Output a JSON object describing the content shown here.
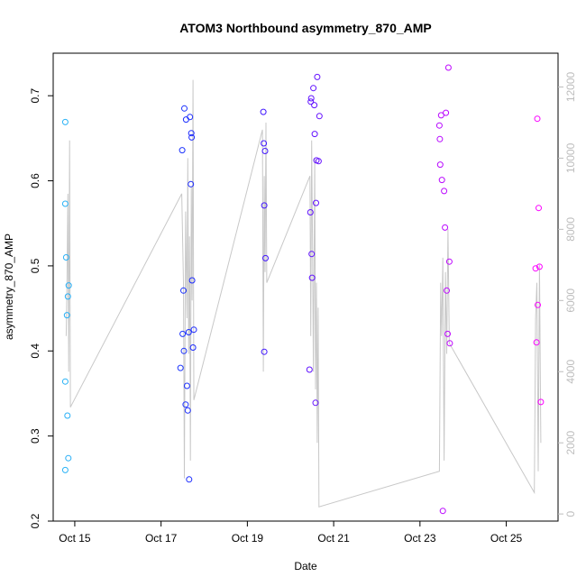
{
  "chart_data": {
    "type": "scatter",
    "title": "ATOM3 Northbound asymmetry_870_AMP",
    "xlabel": "Date",
    "ylabel": "asymmetry_870_AMP",
    "x_ticks": [
      "Oct 15",
      "Oct 17",
      "Oct 19",
      "Oct 21",
      "Oct 23",
      "Oct 25"
    ],
    "x_tick_values": [
      15,
      17,
      19,
      21,
      23,
      25
    ],
    "xlim": [
      14.5,
      26.2
    ],
    "ylim": [
      0.2,
      0.75
    ],
    "y_ticks": [
      0.2,
      0.3,
      0.4,
      0.5,
      0.6,
      0.7
    ],
    "y2_ticks": [
      0,
      2000,
      4000,
      6000,
      8000,
      10000,
      12000
    ],
    "y2lim": [
      -200,
      12950
    ],
    "grid": false,
    "legend": "none",
    "colors": {
      "start": "#29b6f6",
      "mid": "#1a1aff",
      "end": "#ff00ff",
      "line": "#c8c8c8"
    },
    "series": [
      {
        "values": [
          [
            14.78,
            0.669
          ],
          [
            14.78,
            0.573
          ],
          [
            14.8,
            0.51
          ],
          [
            14.82,
            0.442
          ],
          [
            14.78,
            0.364
          ],
          [
            14.83,
            0.324
          ],
          [
            14.85,
            0.274
          ],
          [
            14.78,
            0.26
          ],
          [
            14.86,
            0.477
          ],
          [
            14.84,
            0.464
          ],
          [
            17.45,
            0.38
          ],
          [
            17.49,
            0.636
          ],
          [
            17.5,
            0.42
          ],
          [
            17.52,
            0.471
          ],
          [
            17.53,
            0.4
          ],
          [
            17.54,
            0.685
          ],
          [
            17.58,
            0.672
          ],
          [
            17.57,
            0.337
          ],
          [
            17.6,
            0.359
          ],
          [
            17.62,
            0.33
          ],
          [
            17.64,
            0.422
          ],
          [
            17.65,
            0.249
          ],
          [
            17.67,
            0.675
          ],
          [
            17.69,
            0.596
          ],
          [
            17.7,
            0.656
          ],
          [
            17.71,
            0.651
          ],
          [
            17.72,
            0.483
          ],
          [
            17.74,
            0.404
          ],
          [
            17.76,
            0.425
          ],
          [
            19.37,
            0.681
          ],
          [
            19.38,
            0.644
          ],
          [
            19.39,
            0.571
          ],
          [
            19.41,
            0.635
          ],
          [
            19.42,
            0.509
          ],
          [
            19.39,
            0.399
          ],
          [
            20.44,
            0.378
          ],
          [
            20.46,
            0.563
          ],
          [
            20.47,
            0.693
          ],
          [
            20.48,
            0.697
          ],
          [
            20.49,
            0.514
          ],
          [
            20.5,
            0.486
          ],
          [
            20.53,
            0.709
          ],
          [
            20.55,
            0.689
          ],
          [
            20.56,
            0.655
          ],
          [
            20.58,
            0.339
          ],
          [
            20.59,
            0.574
          ],
          [
            20.6,
            0.624
          ],
          [
            20.62,
            0.722
          ],
          [
            20.65,
            0.623
          ],
          [
            20.67,
            0.676
          ],
          [
            23.45,
            0.665
          ],
          [
            23.46,
            0.649
          ],
          [
            23.47,
            0.619
          ],
          [
            23.49,
            0.677
          ],
          [
            23.51,
            0.601
          ],
          [
            23.53,
            0.212
          ],
          [
            23.56,
            0.588
          ],
          [
            23.6,
            0.68
          ],
          [
            23.58,
            0.545
          ],
          [
            23.62,
            0.471
          ],
          [
            23.64,
            0.42
          ],
          [
            23.66,
            0.733
          ],
          [
            23.68,
            0.505
          ],
          [
            23.69,
            0.409
          ],
          [
            25.68,
            0.497
          ],
          [
            25.7,
            0.41
          ],
          [
            25.72,
            0.673
          ],
          [
            25.73,
            0.454
          ],
          [
            25.75,
            0.568
          ],
          [
            25.77,
            0.499
          ],
          [
            25.8,
            0.34
          ]
        ]
      }
    ],
    "line_series": {
      "axis": "right",
      "values": [
        [
          14.8,
          5000
        ],
        [
          14.82,
          6500
        ],
        [
          14.84,
          9000
        ],
        [
          14.86,
          4000
        ],
        [
          14.88,
          10500
        ],
        [
          14.9,
          3000
        ],
        [
          17.48,
          9000
        ],
        [
          17.52,
          6500
        ],
        [
          17.54,
          1000
        ],
        [
          17.57,
          8500
        ],
        [
          17.6,
          5500
        ],
        [
          17.62,
          10000
        ],
        [
          17.64,
          4500
        ],
        [
          17.66,
          7800
        ],
        [
          17.68,
          1500
        ],
        [
          17.7,
          9200
        ],
        [
          17.72,
          6000
        ],
        [
          17.74,
          12200
        ],
        [
          17.76,
          3200
        ],
        [
          19.35,
          10800
        ],
        [
          19.37,
          4000
        ],
        [
          19.39,
          9500
        ],
        [
          19.41,
          6800
        ],
        [
          19.43,
          11000
        ],
        [
          19.45,
          6500
        ],
        [
          20.45,
          9500
        ],
        [
          20.47,
          5000
        ],
        [
          20.49,
          10500
        ],
        [
          20.51,
          7500
        ],
        [
          20.53,
          4000
        ],
        [
          20.56,
          10000
        ],
        [
          20.58,
          3500
        ],
        [
          20.6,
          6500
        ],
        [
          20.62,
          2000
        ],
        [
          20.64,
          5800
        ],
        [
          20.66,
          200
        ],
        [
          23.45,
          1200
        ],
        [
          23.48,
          6500
        ],
        [
          23.5,
          5000
        ],
        [
          23.53,
          7200
        ],
        [
          23.56,
          1500
        ],
        [
          23.59,
          6800
        ],
        [
          23.62,
          4500
        ],
        [
          23.65,
          8000
        ],
        [
          23.68,
          4800
        ],
        [
          25.65,
          600
        ],
        [
          25.68,
          5500
        ],
        [
          25.71,
          6500
        ],
        [
          25.74,
          1200
        ],
        [
          25.77,
          7000
        ],
        [
          25.8,
          2000
        ]
      ]
    }
  }
}
